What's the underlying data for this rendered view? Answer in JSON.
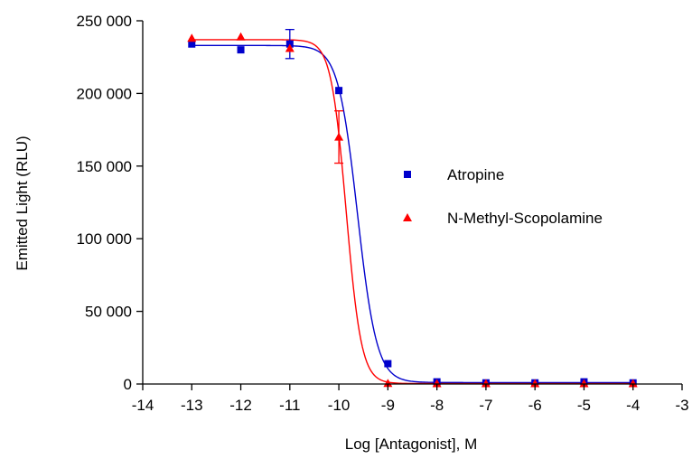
{
  "chart_data": {
    "type": "scatter",
    "title": "",
    "xlabel": "Log [Antagonist], M",
    "ylabel": "Emitted Light (RLU)",
    "xlim": [
      -14,
      -3
    ],
    "ylim": [
      0,
      250000
    ],
    "xticks": [
      -14,
      -13,
      -12,
      -11,
      -10,
      -9,
      -8,
      -7,
      -6,
      -5,
      -4,
      -3
    ],
    "xtick_labels": [
      "-14",
      "-13",
      "-12",
      "-11",
      "-10",
      "-9",
      "-8",
      "-7",
      "-6",
      "-5",
      "-4",
      "-3"
    ],
    "yticks": [
      0,
      50000,
      100000,
      150000,
      200000,
      250000
    ],
    "ytick_labels": [
      "0",
      "50 000",
      "100 000",
      "150 000",
      "200 000",
      "250 000"
    ],
    "grid": false,
    "legend_position": "right",
    "series": [
      {
        "name": "Atropine",
        "color": "#0000cc",
        "marker": "square",
        "x": [
          -13,
          -12,
          -11,
          -10,
          -9,
          -8,
          -7,
          -6,
          -5,
          -4
        ],
        "y": [
          234000,
          230000,
          234000,
          202000,
          14000,
          1500,
          800,
          800,
          1500,
          800
        ],
        "error": [
          0,
          0,
          10000,
          0,
          0,
          0,
          0,
          0,
          0,
          0
        ],
        "fit": {
          "top": 233000,
          "bottom": 1000,
          "log_ic50": -9.62,
          "hill_slope": -2.2
        }
      },
      {
        "name": "N-Methyl-Scopolamine",
        "color": "#ff0000",
        "marker": "triangle",
        "x": [
          -13,
          -12,
          -11,
          -10,
          -9,
          -8,
          -7,
          -6,
          -5,
          -4
        ],
        "y": [
          238000,
          239000,
          231000,
          170000,
          500,
          300,
          300,
          300,
          300,
          300
        ],
        "error": [
          0,
          0,
          0,
          18000,
          0,
          0,
          0,
          0,
          0,
          0
        ],
        "fit": {
          "top": 237000,
          "bottom": 300,
          "log_ic50": -9.85,
          "hill_slope": -2.8
        }
      }
    ]
  }
}
